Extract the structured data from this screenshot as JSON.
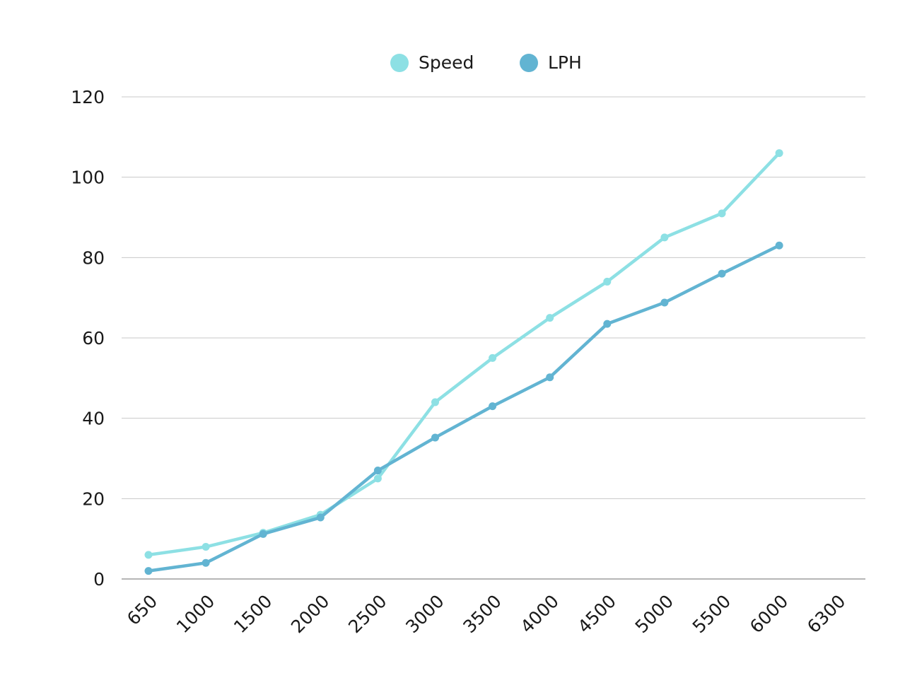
{
  "chart_data": {
    "type": "line",
    "title": "",
    "xlabel": "",
    "ylabel": "",
    "categories": [
      "650",
      "1000",
      "1500",
      "2000",
      "2500",
      "3000",
      "3500",
      "4000",
      "4500",
      "5000",
      "5500",
      "6000",
      "6300"
    ],
    "series": [
      {
        "name": "Speed",
        "color": "#8DE0E4",
        "values": [
          6,
          8,
          11.5,
          16,
          25,
          44,
          55,
          65,
          74,
          85,
          91,
          106,
          null
        ]
      },
      {
        "name": "LPH",
        "color": "#62B4D2",
        "values": [
          2,
          4,
          11.2,
          15.3,
          27,
          35.2,
          43,
          50.2,
          63.5,
          68.8,
          76,
          83,
          null
        ]
      }
    ],
    "ylim": [
      0,
      120
    ],
    "yticks": [
      0,
      20,
      40,
      60,
      80,
      100,
      120
    ],
    "grid": true,
    "legend": "top-center"
  }
}
